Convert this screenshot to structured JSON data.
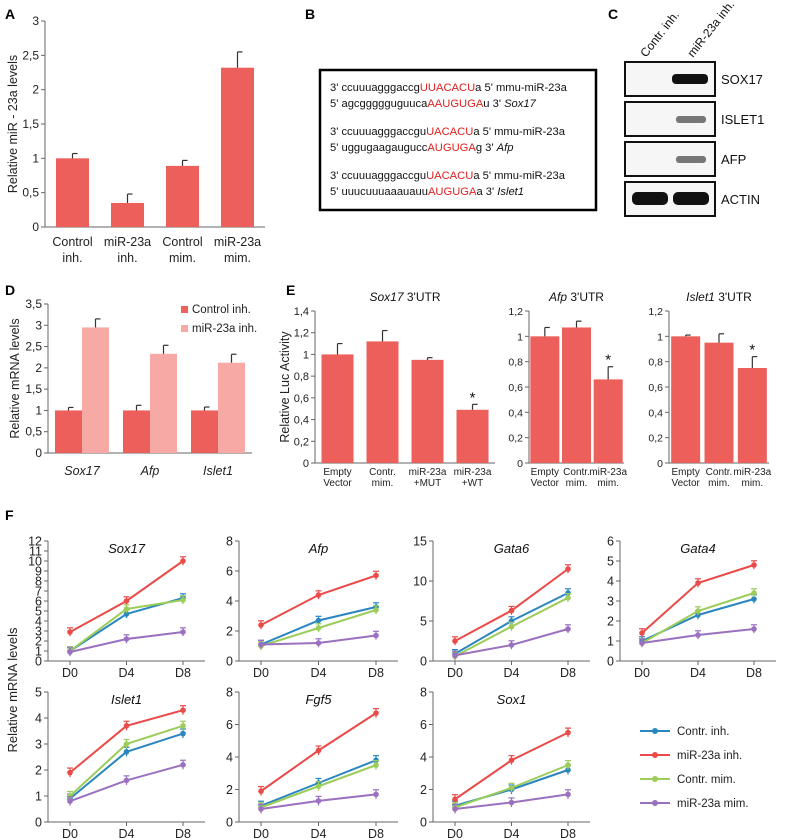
{
  "colors": {
    "bar_red": "#ec5f5b",
    "bar_pink": "#f7a9a5",
    "highlight_red": "#e02020",
    "line_blue": "#2a86c0",
    "line_red": "#ea4b48",
    "line_green": "#9ccc5a",
    "line_purple": "#9a70bf"
  },
  "panels": {
    "A": "A",
    "B": "B",
    "C": "C",
    "D": "D",
    "E": "E",
    "F": "F"
  },
  "panel_b": {
    "rows": [
      {
        "pre": "3' ccuuuagggaccg",
        "hl": "UUACACU",
        "post": "a 5' mmu-miR-23a",
        "gene": ""
      },
      {
        "pre": "5' agcggggguguuca",
        "hl": "AAUGUGA",
        "post": "u 3' ",
        "gene": "Sox17"
      },
      {
        "pre": "3' ccuuuagggaccgu",
        "hl": "UACACU",
        "post": "a 5' mmu-miR-23a",
        "gene": ""
      },
      {
        "pre": "5' uggugaagaugucc",
        "hl": "AUGUGA",
        "post": "g 3' ",
        "gene": "Afp"
      },
      {
        "pre": "3' ccuuuagggaccgu",
        "hl": "UACACU",
        "post": "a 5' mmu-miR-23a",
        "gene": ""
      },
      {
        "pre": "5' uuucuuuaaauauu",
        "hl": "AUGUGA",
        "post": "a 3' ",
        "gene": "Islet1"
      }
    ]
  },
  "panel_c": {
    "lanes": [
      "Contr. inh.",
      "miR-23a inh."
    ],
    "blots": [
      "SOX17",
      "ISLET1",
      "AFP",
      "ACTIN"
    ]
  },
  "chart_data": [
    {
      "id": "A",
      "type": "bar",
      "ylabel": "Relative miR - 23a levels",
      "ylim": [
        0,
        3
      ],
      "yticks": [
        "0",
        "0,5",
        "1",
        "1,5",
        "2",
        "2,5",
        "3"
      ],
      "categories": [
        [
          "Control",
          "inh."
        ],
        [
          "miR-23a",
          "inh."
        ],
        [
          "Control",
          "mim."
        ],
        [
          "miR-23a",
          "mim."
        ]
      ],
      "values": [
        1.0,
        0.35,
        0.89,
        2.32
      ],
      "errors": [
        0.07,
        0.13,
        0.08,
        0.23
      ]
    },
    {
      "id": "D",
      "type": "bar",
      "ylabel": "Relative mRNA levels",
      "ylim": [
        0,
        3.5
      ],
      "yticks": [
        "0",
        "0,5",
        "1",
        "1,5",
        "2",
        "2,5",
        "3",
        "3,5"
      ],
      "categories": [
        "Sox17",
        "Afp",
        "Islet1"
      ],
      "series": [
        {
          "name": "Control inh.",
          "values": [
            1.0,
            1.0,
            1.0
          ],
          "errors": [
            0.07,
            0.12,
            0.08
          ]
        },
        {
          "name": "miR-23a inh.",
          "values": [
            2.95,
            2.33,
            2.12
          ],
          "errors": [
            0.2,
            0.2,
            0.2
          ]
        }
      ]
    },
    {
      "id": "E1",
      "type": "bar",
      "title_gene": "Sox17",
      "title_rest": " 3'UTR",
      "ylabel": "Relative Luc Activity",
      "ylim": [
        0,
        1.4
      ],
      "yticks": [
        "0",
        "0,2",
        "0,4",
        "0,6",
        "0,8",
        "1",
        "1,2",
        "1,4"
      ],
      "categories": [
        [
          "Empty",
          "Vector"
        ],
        [
          "Contr.",
          "mim."
        ],
        [
          "miR-23a",
          "+MUT"
        ],
        [
          "miR-23a",
          "+WT"
        ]
      ],
      "values": [
        1.0,
        1.12,
        0.95,
        0.49
      ],
      "errors": [
        0.1,
        0.1,
        0.02,
        0.05
      ],
      "stars": [
        "",
        "",
        "",
        "*"
      ]
    },
    {
      "id": "E2",
      "type": "bar",
      "title_gene": "Afp",
      "title_rest": " 3'UTR",
      "ylabel": "",
      "ylim": [
        0,
        1.2
      ],
      "yticks": [
        "0",
        "0,2",
        "0,4",
        "0,6",
        "0,8",
        "1",
        "1,2"
      ],
      "categories": [
        [
          "Empty",
          "Vector"
        ],
        [
          "Contr.",
          "mim."
        ],
        [
          "miR-23a",
          "mim."
        ]
      ],
      "values": [
        1.0,
        1.07,
        0.66
      ],
      "errors": [
        0.07,
        0.05,
        0.1
      ],
      "stars": [
        "",
        "",
        "*"
      ]
    },
    {
      "id": "E3",
      "type": "bar",
      "title_gene": "Islet1",
      "title_rest": " 3'UTR",
      "ylabel": "",
      "ylim": [
        0,
        1.2
      ],
      "yticks": [
        "0",
        "0,2",
        "0,4",
        "0,6",
        "0,8",
        "1",
        "1,2"
      ],
      "categories": [
        [
          "Empty",
          "Vector"
        ],
        [
          "Contr.",
          "mim."
        ],
        [
          "miR-23a",
          "mim."
        ]
      ],
      "values": [
        1.0,
        0.95,
        0.75
      ],
      "errors": [
        0.01,
        0.07,
        0.09
      ],
      "stars": [
        "",
        "",
        "*"
      ]
    },
    {
      "id": "F",
      "type": "line",
      "ylabel": "Relative mRNA levels",
      "x": [
        "D0",
        "D4",
        "D8"
      ],
      "legend": [
        "Contr. inh.",
        "miR-23a inh.",
        "Contr. mim.",
        "miR-23a mim."
      ],
      "plots": [
        {
          "title": "Sox17",
          "ylim": [
            0,
            12
          ],
          "yticks": [
            "0",
            "1",
            "2",
            "3",
            "4",
            "5",
            "6",
            "7",
            "8",
            "9",
            "10",
            "11",
            "12"
          ],
          "series": [
            [
              1,
              4.7,
              6.3
            ],
            [
              2.9,
              6.0,
              10.0
            ],
            [
              1,
              5.2,
              6.1
            ],
            [
              0.9,
              2.2,
              2.9
            ]
          ]
        },
        {
          "title": "Afp",
          "ylim": [
            0,
            8
          ],
          "yticks": [
            "0",
            "2",
            "4",
            "6",
            "8"
          ],
          "series": [
            [
              1.1,
              2.7,
              3.6
            ],
            [
              2.4,
              4.4,
              5.7
            ],
            [
              1.0,
              2.2,
              3.4
            ],
            [
              1.1,
              1.2,
              1.7
            ]
          ]
        },
        {
          "title": "Gata6",
          "ylim": [
            0,
            15
          ],
          "yticks": [
            "0",
            "5",
            "10",
            "15"
          ],
          "series": [
            [
              0.9,
              5.0,
              8.5
            ],
            [
              2.5,
              6.3,
              11.5
            ],
            [
              0.6,
              4.3,
              7.9
            ],
            [
              0.7,
              2.0,
              4.0
            ]
          ]
        },
        {
          "title": "Gata4",
          "ylim": [
            0,
            6
          ],
          "yticks": [
            "0",
            "1",
            "2",
            "3",
            "4",
            "5",
            "6"
          ],
          "series": [
            [
              1.0,
              2.3,
              3.1
            ],
            [
              1.4,
              3.9,
              4.8
            ],
            [
              0.9,
              2.5,
              3.4
            ],
            [
              0.9,
              1.3,
              1.6
            ]
          ]
        },
        {
          "title": "Islet1",
          "ylim": [
            0,
            5
          ],
          "yticks": [
            "0",
            "1",
            "2",
            "3",
            "4",
            "5"
          ],
          "series": [
            [
              0.9,
              2.7,
              3.4
            ],
            [
              1.9,
              3.7,
              4.3
            ],
            [
              1.0,
              3.0,
              3.7
            ],
            [
              0.8,
              1.6,
              2.2
            ]
          ]
        },
        {
          "title": "Fgf5",
          "ylim": [
            0,
            8
          ],
          "yticks": [
            "0",
            "2",
            "4",
            "6",
            "8"
          ],
          "series": [
            [
              1.0,
              2.4,
              3.8
            ],
            [
              1.9,
              4.4,
              6.7
            ],
            [
              0.9,
              2.2,
              3.5
            ],
            [
              0.8,
              1.3,
              1.7
            ]
          ]
        },
        {
          "title": "Sox1",
          "ylim": [
            0,
            8
          ],
          "yticks": [
            "0",
            "2",
            "4",
            "6",
            "8"
          ],
          "series": [
            [
              1.0,
              2.0,
              3.2
            ],
            [
              1.4,
              3.8,
              5.5
            ],
            [
              0.9,
              2.1,
              3.5
            ],
            [
              0.8,
              1.2,
              1.7
            ]
          ]
        }
      ]
    }
  ]
}
